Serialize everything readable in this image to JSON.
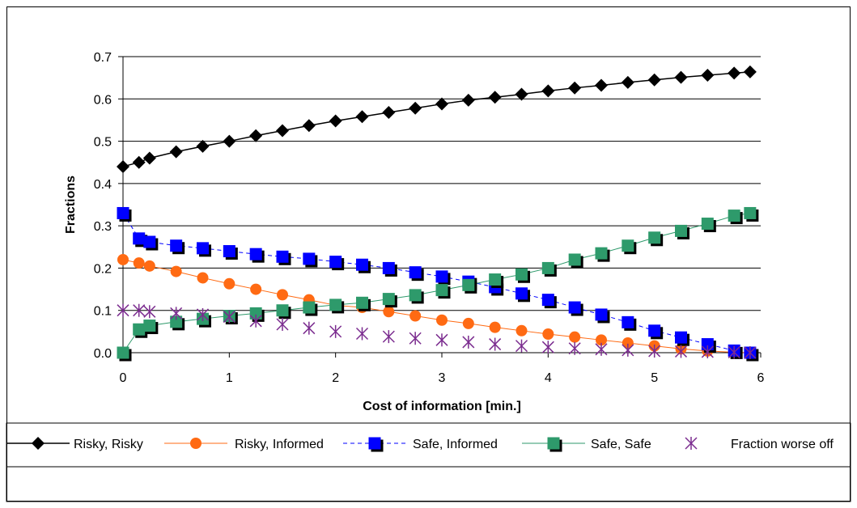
{
  "chart_data": {
    "type": "line",
    "title": "",
    "xlabel": "Cost of information [min.]",
    "ylabel": "Fractions",
    "xlim": [
      0,
      6
    ],
    "ylim": [
      0.0,
      0.7
    ],
    "xticks": [
      "0",
      "1",
      "2",
      "3",
      "4",
      "5",
      "6"
    ],
    "yticks": [
      "0.0",
      "0.1",
      "0.2",
      "0.3",
      "0.4",
      "0.5",
      "0.6",
      "0.7"
    ],
    "grid": "horizontal",
    "legend_position": "bottom",
    "x": [
      0,
      0.15,
      0.25,
      0.5,
      0.75,
      1.0,
      1.25,
      1.5,
      1.75,
      2.0,
      2.25,
      2.5,
      2.75,
      3.0,
      3.25,
      3.5,
      3.75,
      4.0,
      4.25,
      4.5,
      4.75,
      5.0,
      5.25,
      5.5,
      5.75,
      5.9
    ],
    "series": [
      {
        "name": "Risky, Risky",
        "color": "#000000",
        "marker": "diamond",
        "line": "solid",
        "values": [
          0.44,
          0.45,
          0.46,
          0.475,
          0.488,
          0.5,
          0.513,
          0.525,
          0.537,
          0.548,
          0.558,
          0.568,
          0.578,
          0.588,
          0.597,
          0.604,
          0.611,
          0.619,
          0.626,
          0.632,
          0.639,
          0.645,
          0.651,
          0.656,
          0.661,
          0.664
        ]
      },
      {
        "name": "Risky, Informed",
        "color": "#FF6A13",
        "marker": "circle",
        "line": "solid",
        "values": [
          0.22,
          0.212,
          0.205,
          0.192,
          0.177,
          0.163,
          0.15,
          0.137,
          0.125,
          0.112,
          0.107,
          0.097,
          0.087,
          0.077,
          0.069,
          0.06,
          0.052,
          0.044,
          0.037,
          0.03,
          0.023,
          0.016,
          0.009,
          0.004,
          0.001,
          0.0
        ]
      },
      {
        "name": "Safe, Informed",
        "color": "#0000FF",
        "marker": "square",
        "line": "dashed",
        "values": [
          0.33,
          0.27,
          0.262,
          0.253,
          0.247,
          0.24,
          0.233,
          0.227,
          0.222,
          0.215,
          0.208,
          0.2,
          0.19,
          0.18,
          0.168,
          0.155,
          0.14,
          0.125,
          0.107,
          0.09,
          0.072,
          0.052,
          0.036,
          0.02,
          0.005,
          0.0
        ]
      },
      {
        "name": "Safe, Safe",
        "color": "#2E9A6B",
        "marker": "square",
        "line": "solid",
        "values": [
          0.0,
          0.055,
          0.064,
          0.073,
          0.08,
          0.087,
          0.093,
          0.1,
          0.107,
          0.113,
          0.118,
          0.127,
          0.136,
          0.148,
          0.16,
          0.173,
          0.185,
          0.2,
          0.22,
          0.235,
          0.253,
          0.272,
          0.288,
          0.305,
          0.324,
          0.33
        ]
      },
      {
        "name": "Fraction worse off",
        "color": "#7B2C8F",
        "marker": "asterisk",
        "line": "none",
        "values": [
          0.1,
          0.1,
          0.097,
          0.093,
          0.09,
          0.085,
          0.075,
          0.067,
          0.058,
          0.05,
          0.045,
          0.038,
          0.034,
          0.03,
          0.025,
          0.02,
          0.016,
          0.013,
          0.01,
          0.008,
          0.006,
          0.004,
          0.003,
          0.002,
          0.001,
          0.0
        ]
      }
    ]
  }
}
